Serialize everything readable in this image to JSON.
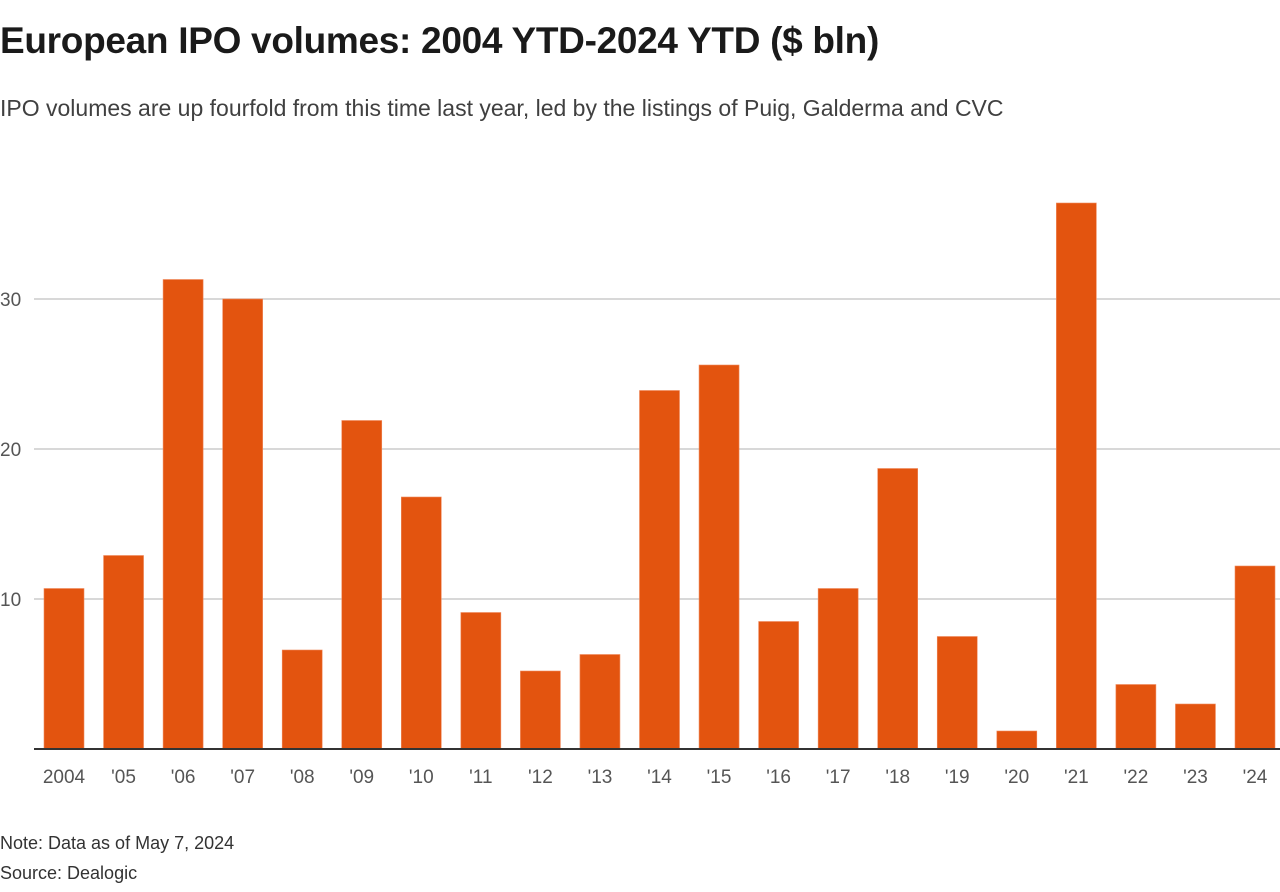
{
  "header": {
    "title": "European IPO volumes: 2004 YTD-2024 YTD ($ bln)",
    "subtitle": "IPO volumes are up fourfold from this time last year, led by the listings of Puig, Galderma and CVC"
  },
  "footer": {
    "note": "Note: Data as of May 7, 2024",
    "source": "Source: Dealogic"
  },
  "colors": {
    "bar": "#e3540f",
    "grid": "#cccccc",
    "axis": "#333333"
  },
  "chart_data": {
    "type": "bar",
    "title": "European IPO volumes: 2004 YTD-2024 YTD ($ bln)",
    "subtitle": "IPO volumes are up fourfold from this time last year, led by the listings of Puig, Galderma and CVC",
    "xlabel": "",
    "ylabel": "$ bln",
    "categories": [
      "2004",
      "'05",
      "'06",
      "'07",
      "'08",
      "'09",
      "'10",
      "'11",
      "'12",
      "'13",
      "'14",
      "'15",
      "'16",
      "'17",
      "'18",
      "'19",
      "'20",
      "'21",
      "'22",
      "'23",
      "'24"
    ],
    "values": [
      10.7,
      12.9,
      31.3,
      30.0,
      6.6,
      21.9,
      16.8,
      9.1,
      5.2,
      6.3,
      23.9,
      25.6,
      8.5,
      10.7,
      18.7,
      7.5,
      1.2,
      36.4,
      4.3,
      3.0,
      12.2
    ],
    "ylim": [
      0,
      36.4
    ],
    "yticks": [
      10,
      20,
      30
    ],
    "ytick_labels": [
      "10",
      "20",
      "30"
    ],
    "grid": true,
    "legend": "none"
  }
}
